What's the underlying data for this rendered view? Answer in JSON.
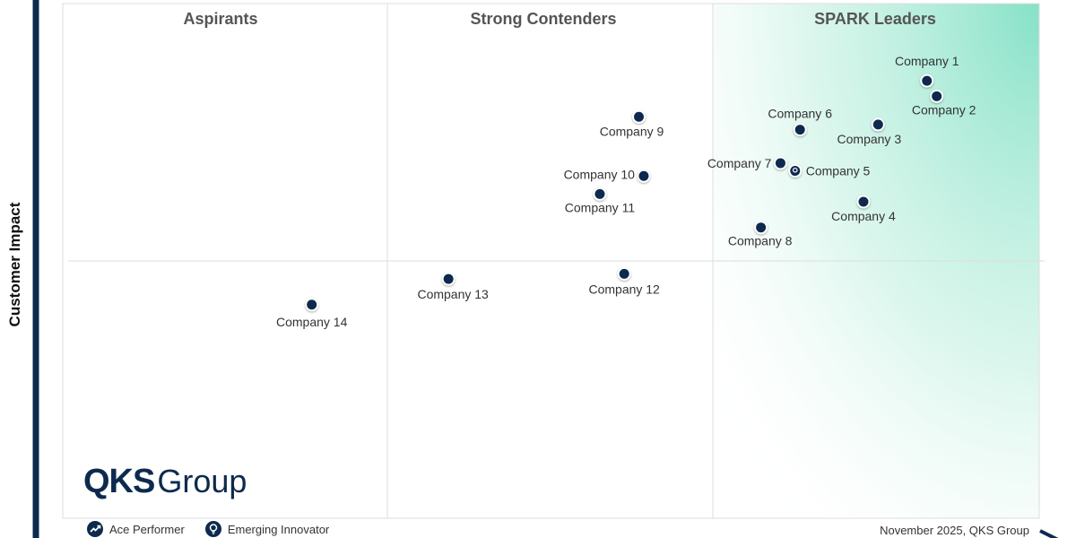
{
  "chart_data": {
    "type": "scatter",
    "ylabel": "Customer Impact",
    "quadrants": [
      "Aspirants",
      "Strong Contenders",
      "SPARK Leaders"
    ],
    "points": [
      {
        "label": "Company 1",
        "x": 88.5,
        "y": 85.0,
        "marker": "ace-performer"
      },
      {
        "label": "Company 2",
        "x": 89.5,
        "y": 82.0,
        "marker": "ace-performer"
      },
      {
        "label": "Company 3",
        "x": 83.5,
        "y": 76.5,
        "marker": "ace-performer"
      },
      {
        "label": "Company 4",
        "x": 82.0,
        "y": 61.5,
        "marker": "ace-performer"
      },
      {
        "label": "Company 5",
        "x": 75.0,
        "y": 67.5,
        "marker": "emerging-innovator"
      },
      {
        "label": "Company 6",
        "x": 75.5,
        "y": 75.5,
        "marker": "ace-performer"
      },
      {
        "label": "Company 7",
        "x": 73.5,
        "y": 69.0,
        "marker": "ace-performer"
      },
      {
        "label": "Company 8",
        "x": 71.5,
        "y": 56.5,
        "marker": "ace-performer"
      },
      {
        "label": "Company 9",
        "x": 59.0,
        "y": 78.0,
        "marker": "ace-performer"
      },
      {
        "label": "Company 10",
        "x": 59.5,
        "y": 66.5,
        "marker": "ace-performer"
      },
      {
        "label": "Company 11",
        "x": 55.0,
        "y": 63.0,
        "marker": "ace-performer"
      },
      {
        "label": "Company 12",
        "x": 57.5,
        "y": 47.5,
        "marker": "ace-performer"
      },
      {
        "label": "Company 13",
        "x": 39.5,
        "y": 46.5,
        "marker": "ace-performer"
      },
      {
        "label": "Company 14",
        "x": 25.5,
        "y": 41.5,
        "marker": "ace-performer"
      }
    ],
    "xlim": [
      0,
      100
    ],
    "ylim": [
      0,
      100
    ],
    "legend": [
      {
        "name": "Ace Performer",
        "icon": "trend-up-icon"
      },
      {
        "name": "Emerging Innovator",
        "icon": "lightbulb-icon"
      }
    ],
    "legend_position": "bottom-left"
  },
  "footer": {
    "date_source": "November 2025, QKS Group"
  },
  "logo": {
    "bold": "QKS",
    "light": "Group"
  },
  "colors": {
    "marker": "#0d2a4e",
    "leader_zone": "#7fe0c4",
    "axis": "#0d2a4e",
    "grid": "#dddddd",
    "quadrant_title": "#555555"
  }
}
